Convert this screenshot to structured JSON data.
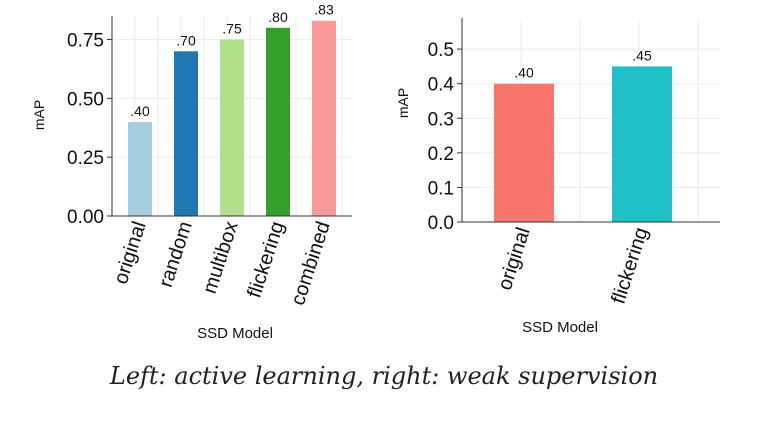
{
  "chart_data": [
    {
      "type": "bar",
      "categories": [
        "original",
        "random",
        "multibox",
        "flickering",
        "combined"
      ],
      "values": [
        0.4,
        0.7,
        0.75,
        0.8,
        0.83
      ],
      "data_labels": [
        ".40",
        ".70",
        ".75",
        ".80",
        ".83"
      ],
      "colors": [
        "#a6cee3",
        "#1f78b4",
        "#b2df8a",
        "#33a02c",
        "#fb9a99"
      ],
      "xlabel": "SSD  Model",
      "ylabel": "mAP",
      "ylim": [
        0,
        0.85
      ],
      "yticks": [
        0,
        0.25,
        0.5,
        0.75
      ],
      "ytick_labels": [
        "0.00",
        "0.25",
        "0.50",
        "0.75"
      ],
      "grid": true
    },
    {
      "type": "bar",
      "categories": [
        "original",
        "flickering"
      ],
      "values": [
        0.4,
        0.45
      ],
      "data_labels": [
        ".40",
        ".45"
      ],
      "colors": [
        "#f8766d",
        "#20c0c8"
      ],
      "xlabel": "SSD  Model",
      "ylabel": "mAP",
      "ylim": [
        0,
        0.59
      ],
      "yticks": [
        0,
        0.1,
        0.2,
        0.3,
        0.4,
        0.5
      ],
      "ytick_labels": [
        "0.0",
        "0.1",
        "0.2",
        "0.3",
        "0.4",
        "0.5"
      ],
      "grid": true
    }
  ],
  "caption": "Left: active learning, right: weak supervision"
}
